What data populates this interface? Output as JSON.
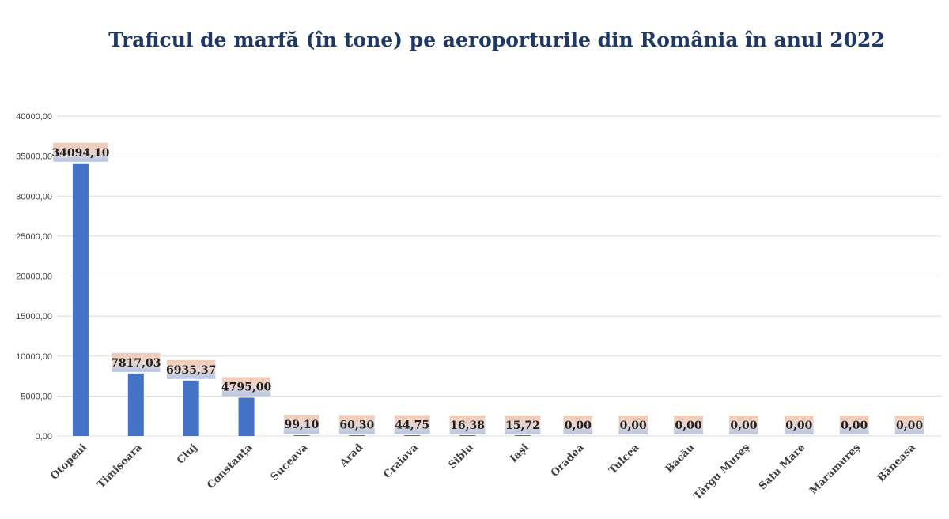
{
  "chart_data": {
    "type": "bar",
    "title": "Traficul de marfă (în tone) pe aeroporturile din România în anul 2022",
    "xlabel": "",
    "ylabel": "",
    "ylim": [
      0,
      40000
    ],
    "yticks": [
      "0,00",
      "5000,00",
      "10000,00",
      "15000,00",
      "20000,00",
      "25000,00",
      "30000,00",
      "35000,00",
      "40000,00"
    ],
    "grid": true,
    "categories": [
      "Otopeni",
      "Timișoara",
      "Cluj",
      "Constanța",
      "Suceava",
      "Arad",
      "Craiova",
      "Sibiu",
      "Iași",
      "Oradea",
      "Tulcea",
      "Bacău",
      "Târgu Mureș",
      "Satu Mare",
      "Maramureș",
      "Băneasa"
    ],
    "values": [
      34094.1,
      7817.03,
      6935.37,
      4795.0,
      99.1,
      60.3,
      44.75,
      16.38,
      15.72,
      0.0,
      0.0,
      0.0,
      0.0,
      0.0,
      0.0,
      0.0
    ],
    "data_labels": [
      "34094,10",
      "7817,03",
      "6935,37",
      "4795,00",
      "99,10",
      "60,30",
      "44,75",
      "16,38",
      "15,72",
      "0,00",
      "0,00",
      "0,00",
      "0,00",
      "0,00",
      "0,00",
      "0,00"
    ],
    "colors": {
      "bar": "#4472c4",
      "grid": "#d9d9d9",
      "label_bg_top": "#f4cbb5",
      "label_bg_bottom": "#b4c7e7",
      "title": "#1f3864"
    }
  }
}
